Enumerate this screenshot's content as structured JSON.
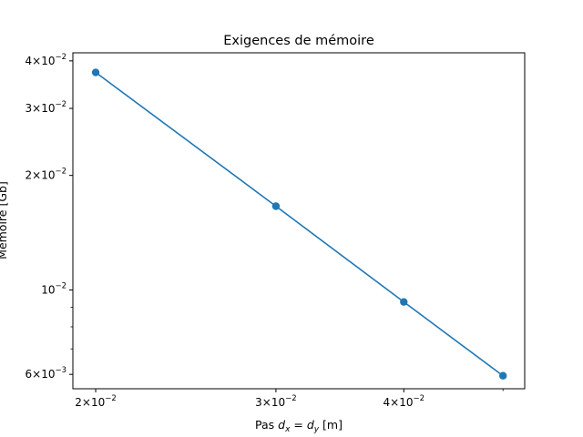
{
  "chart_data": {
    "type": "line",
    "title": "Exigences de mémoire",
    "xlabel": "Pas d_x = d_y [m]",
    "ylabel": "Mémoire [Gb]",
    "xscale": "log",
    "yscale": "log",
    "xlim": [
      0.019,
      0.0525
    ],
    "ylim": [
      0.0055,
      0.042
    ],
    "grid": false,
    "color": "#1f77b4",
    "series": [
      {
        "x": [
          0.02,
          0.03,
          0.04,
          0.05
        ],
        "y": [
          0.0373,
          0.0166,
          0.0093,
          0.00595
        ],
        "marker": "circle"
      }
    ],
    "x_major_ticks": [
      {
        "value": 0.02,
        "mantissa": "2",
        "exp": "−2"
      },
      {
        "value": 0.03,
        "mantissa": "3",
        "exp": "−2"
      },
      {
        "value": 0.04,
        "mantissa": "4",
        "exp": "−2"
      }
    ],
    "y_ticks": [
      {
        "value": 0.04,
        "mantissa": "4",
        "exp": "−2"
      },
      {
        "value": 0.03,
        "mantissa": "3",
        "exp": "−2"
      },
      {
        "value": 0.02,
        "mantissa": "2",
        "exp": "−2"
      },
      {
        "value": 0.01,
        "mantissa": "",
        "exp": "−2"
      },
      {
        "value": 0.006,
        "mantissa": "6",
        "exp": "−3"
      }
    ],
    "y_minor_ticks": [
      0.007,
      0.008,
      0.009
    ],
    "x_minor_ticks": [
      0.05
    ]
  }
}
